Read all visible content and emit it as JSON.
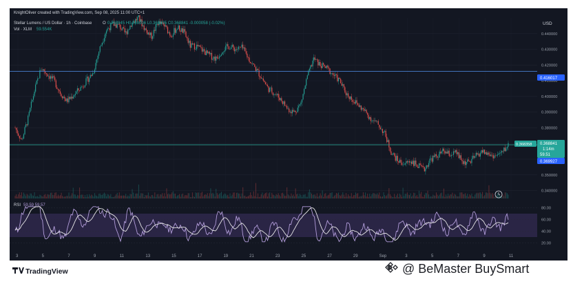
{
  "header": {
    "created_by": "KnightOliver created with TradingView.com, Sep 08, 2025 11:00 UTC+1",
    "symbol_line": "Stellar Lumens / US Dollar · 1h · Coinbase",
    "ohlc_prefix": "O",
    "ohlc_values": "0.368845 H0.369006 L0.368695 C0.368841 -0.000058 (-0.02%)",
    "volume_line": "Vol · XLM",
    "volume_value": "59.554K"
  },
  "currency": "USD",
  "price_tags": {
    "upper": "0.416017",
    "last_left": "0.368358",
    "last": "0.368841",
    "countdown": "1:14m",
    "small": "59.51",
    "lower": "0.369927"
  },
  "rsi": {
    "label": "RSI",
    "values": "59.59  59.57"
  },
  "brand": {
    "logo_text": "TradingView",
    "watermark": "@ BeMaster BuySmart"
  },
  "colors": {
    "background": "#131722",
    "panel_bg": "#1a1d29",
    "up": "#26a69a",
    "down": "#ef5350",
    "rsi_line": "#b39ddb",
    "rsi_band": "#2a2545",
    "axis_text": "#9aa0ab",
    "tag_blue": "#2962ff",
    "tag_teal": "#26a69a"
  },
  "chart_data": [
    {
      "type": "candlestick",
      "title": "Stellar Lumens / US Dollar · 1h · Coinbase",
      "ylim": [
        0.335,
        0.45
      ],
      "y_ticks": [
        "0.440000",
        "0.430000",
        "0.420000",
        "0.410000",
        "0.400000",
        "0.390000",
        "0.380000",
        "0.370000",
        "0.360000",
        "0.350000",
        "0.340000"
      ],
      "y_tick_values": [
        0.44,
        0.43,
        0.42,
        0.41,
        0.4,
        0.39,
        0.38,
        0.37,
        0.36,
        0.35,
        0.34
      ],
      "x_ticks": [
        "3",
        "5",
        "7",
        "9",
        "11",
        "13",
        "15",
        "17",
        "19",
        "21",
        "23",
        "25",
        "27",
        "29",
        "Sep",
        "3",
        "5",
        "7",
        "9",
        "11"
      ],
      "horizontal_lines": [
        0.416,
        0.3692
      ],
      "price_path_days": [
        0,
        0.5,
        1,
        1.5,
        2,
        2.5,
        3,
        3.5,
        4,
        4.5,
        5,
        5.5,
        6,
        6.5,
        7,
        7.5,
        8,
        8.5,
        9,
        9.5,
        10,
        10.5,
        11,
        11.5,
        12,
        12.5,
        13,
        13.5,
        14,
        14.5,
        15,
        15.5,
        16,
        16.5,
        17,
        17.5,
        18,
        18.5,
        19,
        19.5,
        20,
        20.5,
        21,
        21.5,
        22,
        22.5,
        23,
        23.5,
        24,
        24.5,
        25,
        25.5,
        26,
        26.5,
        27,
        27.5,
        28,
        28.5,
        29,
        29.5,
        30,
        30.5,
        31,
        31.5,
        32,
        32.5,
        33,
        33.5,
        34,
        34.5,
        35,
        35.5,
        36,
        36.5,
        37,
        37.5,
        38
      ],
      "price_path": [
        0.38,
        0.372,
        0.386,
        0.404,
        0.418,
        0.414,
        0.41,
        0.402,
        0.397,
        0.401,
        0.405,
        0.41,
        0.415,
        0.43,
        0.442,
        0.446,
        0.445,
        0.44,
        0.447,
        0.45,
        0.443,
        0.438,
        0.447,
        0.445,
        0.439,
        0.444,
        0.441,
        0.432,
        0.432,
        0.429,
        0.426,
        0.424,
        0.43,
        0.432,
        0.43,
        0.431,
        0.424,
        0.418,
        0.412,
        0.405,
        0.402,
        0.398,
        0.392,
        0.39,
        0.395,
        0.412,
        0.424,
        0.42,
        0.418,
        0.414,
        0.41,
        0.402,
        0.398,
        0.394,
        0.39,
        0.385,
        0.382,
        0.376,
        0.364,
        0.359,
        0.357,
        0.359,
        0.356,
        0.353,
        0.36,
        0.362,
        0.365,
        0.363,
        0.364,
        0.358,
        0.358,
        0.362,
        0.365,
        0.363,
        0.362,
        0.364,
        0.369
      ],
      "rsi_ylim": [
        10,
        90
      ],
      "rsi_ticks": [
        "80.00",
        "60.00",
        "40.00",
        "20.00"
      ],
      "rsi_tick_values": [
        80,
        60,
        40,
        20
      ],
      "rsi_band": [
        30,
        70
      ],
      "rsi_current": 59.57
    }
  ]
}
